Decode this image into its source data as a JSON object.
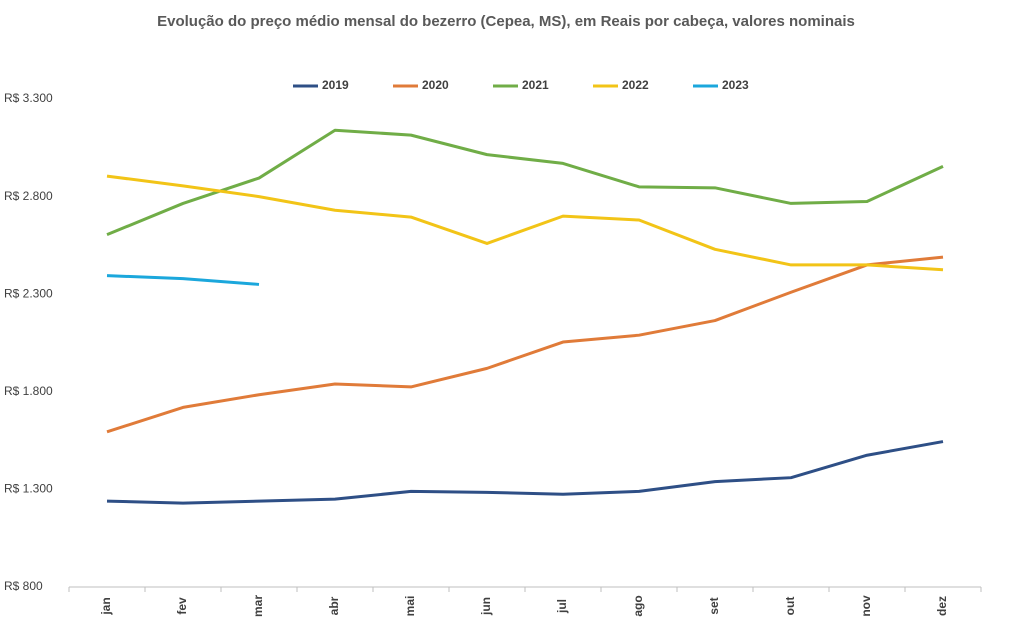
{
  "chart_data": {
    "type": "line",
    "title": "Evolução do preço médio mensal do bezerro (Cepea, MS), em Reais por cabeça, valores nominais",
    "categories": [
      "jan",
      "fev",
      "mar",
      "abr",
      "mai",
      "jun",
      "jul",
      "ago",
      "set",
      "out",
      "nov",
      "dez"
    ],
    "series": [
      {
        "name": "2019",
        "color": "#2e4f86",
        "values": [
          1240,
          1230,
          1240,
          1250,
          1290,
          1285,
          1275,
          1290,
          1340,
          1360,
          1475,
          1545
        ]
      },
      {
        "name": "2020",
        "color": "#e07b39",
        "values": [
          1595,
          1720,
          1785,
          1840,
          1825,
          1920,
          2055,
          2090,
          2165,
          2310,
          2450,
          2490
        ]
      },
      {
        "name": "2021",
        "color": "#70ad47",
        "values": [
          2605,
          2765,
          2895,
          3140,
          3115,
          3015,
          2970,
          2850,
          2845,
          2765,
          2775,
          2955
        ]
      },
      {
        "name": "2022",
        "color": "#f2c417",
        "values": [
          2905,
          2855,
          2800,
          2730,
          2695,
          2560,
          2700,
          2680,
          2530,
          2450,
          2450,
          2425
        ]
      },
      {
        "name": "2023",
        "color": "#1ba7dc",
        "values": [
          2395,
          2380,
          2350,
          null,
          null,
          null,
          null,
          null,
          null,
          null,
          null,
          null
        ]
      }
    ],
    "ylim": [
      800,
      3300
    ],
    "yticks": [
      {
        "value": 800,
        "label": "R$ 800"
      },
      {
        "value": 1300,
        "label": "R$ 1.300"
      },
      {
        "value": 1800,
        "label": "R$ 1.800"
      },
      {
        "value": 2300,
        "label": "R$ 2.300"
      },
      {
        "value": 2800,
        "label": "R$ 2.800"
      },
      {
        "value": 3300,
        "label": "R$ 3.300"
      }
    ],
    "legend": "top",
    "grid": false
  }
}
